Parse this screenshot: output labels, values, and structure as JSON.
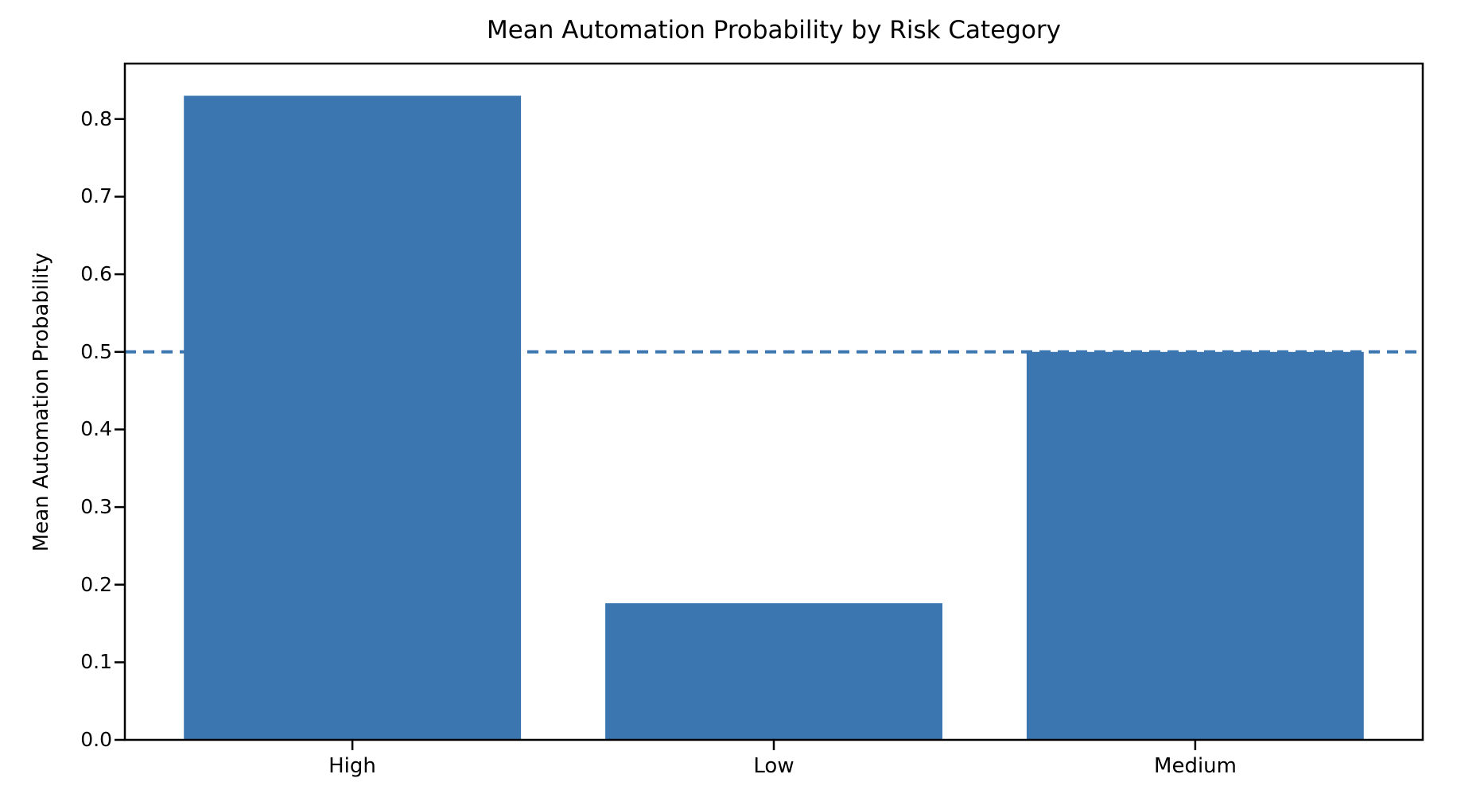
{
  "chart_data": {
    "type": "bar",
    "title": "Mean Automation Probability by Risk Category",
    "ylabel": "Mean Automation Probability",
    "xlabel": "",
    "categories": [
      "High",
      "Low",
      "Medium"
    ],
    "values": [
      0.83,
      0.176,
      0.5
    ],
    "ytick_labels": [
      "0.0",
      "0.1",
      "0.2",
      "0.3",
      "0.4",
      "0.5",
      "0.6",
      "0.7",
      "0.8"
    ],
    "ylim": [
      0,
      0.8715
    ],
    "bar_width_fraction": 0.8,
    "reference_line": {
      "value": 0.5,
      "style": "dashed",
      "color": "#3b76b1"
    },
    "bar_color": "#3b76b1",
    "spine_color": "#000000",
    "tick_color": "#000000",
    "background_color": "#ffffff",
    "grid": false,
    "legend": false
  }
}
